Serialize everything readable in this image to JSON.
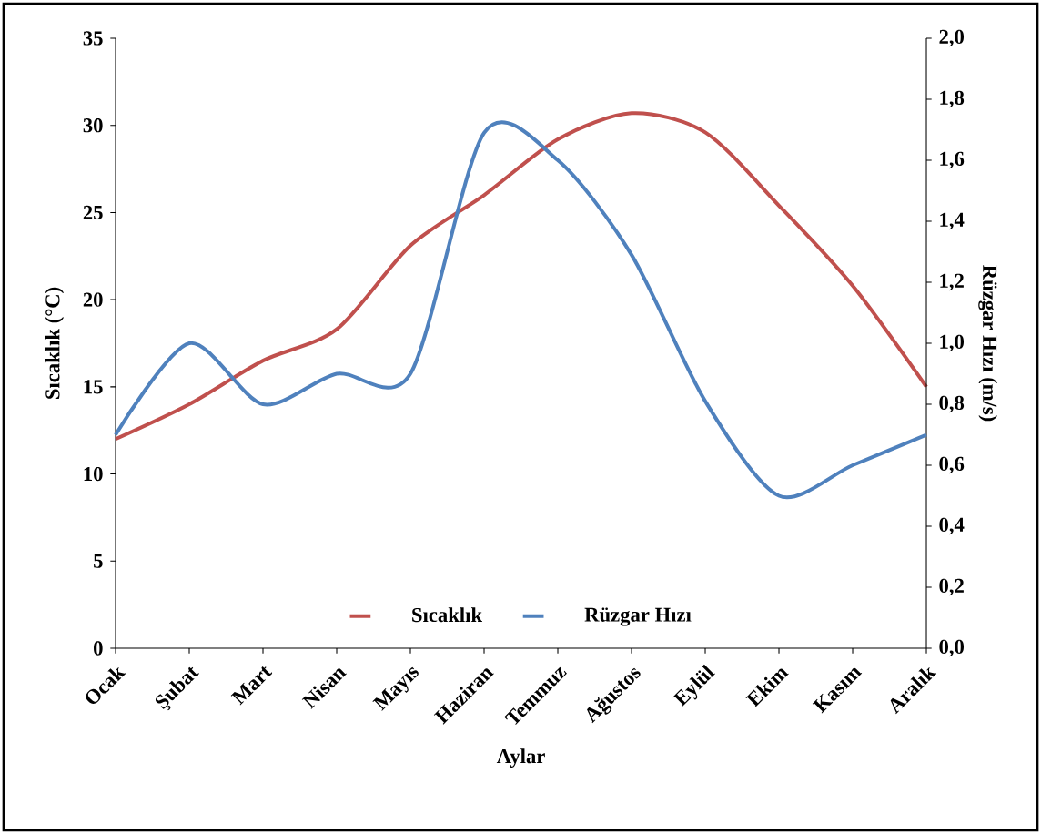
{
  "chart_data": {
    "type": "line",
    "xlabel": "Aylar",
    "ylabel": "Sıcaklık (°C)",
    "y2label": "Rüzgar Hızı (m/s)",
    "categories": [
      "Ocak",
      "Şubat",
      "Mart",
      "Nisan",
      "Mayıs",
      "Haziran",
      "Temmuz",
      "Ağustos",
      "Eylül",
      "Ekim",
      "Kasım",
      "Aralık"
    ],
    "series": [
      {
        "name": "Sıcaklık",
        "color": "#c0504d",
        "values": [
          12.0,
          14.0,
          16.5,
          18.3,
          23.1,
          26.0,
          29.2,
          30.7,
          29.6,
          25.4,
          20.8,
          15.0
        ]
      },
      {
        "name": "Rüzgar Hızı",
        "color": "#4f81bd",
        "axis": "y2",
        "values": [
          0.7,
          1.0,
          0.8,
          0.9,
          0.9,
          1.69,
          1.6,
          1.29,
          0.81,
          0.5,
          0.6,
          0.7
        ]
      }
    ],
    "ylim": [
      0,
      35
    ],
    "yticks": [
      0,
      5,
      10,
      15,
      20,
      25,
      30,
      35
    ],
    "y2lim": [
      0,
      2
    ],
    "y2ticks": [
      {
        "value": 0,
        "label": "0,0"
      },
      {
        "value": 0.2,
        "label": "0,2"
      },
      {
        "value": 0.4,
        "label": "0,4"
      },
      {
        "value": 0.6,
        "label": "0,6"
      },
      {
        "value": 0.8,
        "label": "0,8"
      },
      {
        "value": 1.0,
        "label": "1,0"
      },
      {
        "value": 1.2,
        "label": "1,2"
      },
      {
        "value": 1.4,
        "label": "1,4"
      },
      {
        "value": 1.6,
        "label": "1,6"
      },
      {
        "value": 1.8,
        "label": "1,8"
      },
      {
        "value": 2.0,
        "label": "2,0"
      }
    ],
    "legend": "bottom"
  }
}
